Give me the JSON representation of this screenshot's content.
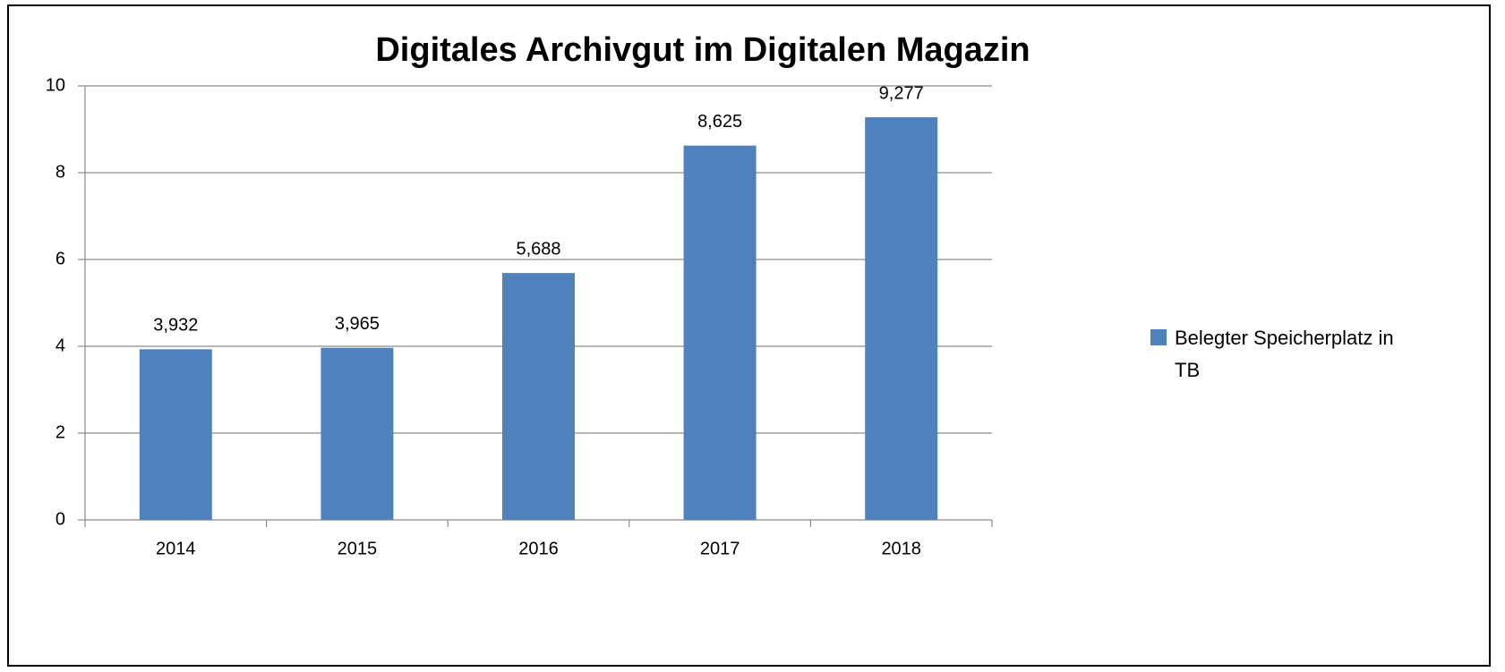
{
  "chart_data": {
    "type": "bar",
    "title": "Digitales Archivgut  im Digitalen Magazin",
    "categories": [
      "2014",
      "2015",
      "2016",
      "2017",
      "2018"
    ],
    "series": [
      {
        "name": "Belegter Speicherplatz in TB",
        "color": "#4f81bd",
        "values": [
          3.932,
          3.965,
          5.688,
          8.625,
          9.277
        ],
        "value_labels": [
          "3,932",
          "3,965",
          "5,688",
          "8,625",
          "9,277"
        ]
      }
    ],
    "ylim": [
      0,
      10
    ],
    "yticks": [
      0,
      2,
      4,
      6,
      8,
      10
    ],
    "grid": true,
    "legend": "right"
  }
}
